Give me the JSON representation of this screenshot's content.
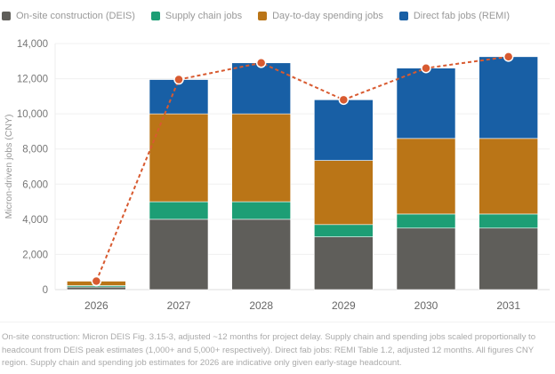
{
  "chart_data": {
    "type": "bar",
    "stacked": true,
    "categories": [
      "2026",
      "2027",
      "2028",
      "2029",
      "2030",
      "2031"
    ],
    "series": [
      {
        "name": "On-site construction (DEIS)",
        "color": "#5f5e5a",
        "values": [
          150,
          4000,
          4000,
          3000,
          3500,
          3500
        ]
      },
      {
        "name": "Supply chain jobs",
        "color": "#1d9e75",
        "values": [
          80,
          1000,
          1000,
          700,
          800,
          800
        ]
      },
      {
        "name": "Day-to-day spending jobs",
        "color": "#ba7517",
        "values": [
          250,
          5000,
          5000,
          3650,
          4300,
          4300
        ]
      },
      {
        "name": "Direct fab jobs (REMI)",
        "color": "#185fa5",
        "values": [
          0,
          1950,
          2900,
          3450,
          4000,
          4650
        ]
      }
    ],
    "total_line": {
      "color": "#d85a30",
      "style": "dashed",
      "values": [
        480,
        11950,
        12900,
        10800,
        12600,
        13250
      ]
    },
    "ylabel": "Micron-driven jobs (CNY)",
    "xlabel": "",
    "ylim": [
      0,
      14000
    ],
    "yticks": [
      "0",
      "2,000",
      "4,000",
      "6,000",
      "8,000",
      "10,000",
      "12,000",
      "14,000"
    ],
    "grid": true,
    "legend": "top-left"
  },
  "footnote": "On-site construction: Micron DEIS Fig. 3.15-3, adjusted ~12 months for project delay. Supply chain and spending jobs scaled proportionally to headcount from DEIS peak estimates (1,000+ and 5,000+ respectively). Direct fab jobs: REMI Table 1.2, adjusted 12 months. All figures CNY region. Supply chain and spending job estimates for 2026 are indicative only given early-stage headcount."
}
